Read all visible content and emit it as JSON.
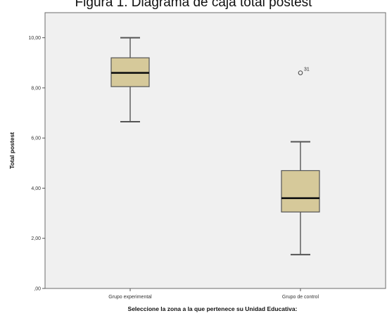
{
  "chart_data": {
    "type": "boxplot",
    "title": "Figura 1. Diagrama de caja total postest",
    "xlabel": "Seleccione la zona a la que pertenece su Unidad Educativa:",
    "ylabel": "Total postest",
    "ylim": [
      0,
      11
    ],
    "y_ticks": [
      {
        "value": 0,
        "label": ",00"
      },
      {
        "value": 2,
        "label": "2,00"
      },
      {
        "value": 4,
        "label": "4,00"
      },
      {
        "value": 6,
        "label": "6,00"
      },
      {
        "value": 8,
        "label": "8,00"
      },
      {
        "value": 10,
        "label": "10,00"
      }
    ],
    "categories": [
      "Grupo experimental",
      "Grupo de control"
    ],
    "boxes": [
      {
        "category": "Grupo experimental",
        "min": 6.65,
        "q1": 8.05,
        "median": 8.6,
        "q3": 9.2,
        "max": 10.0,
        "outliers": []
      },
      {
        "category": "Grupo de control",
        "min": 1.35,
        "q1": 3.05,
        "median": 3.6,
        "q3": 4.7,
        "max": 5.85,
        "outliers": [
          {
            "value": 8.6,
            "label": "31"
          }
        ]
      }
    ],
    "grid": false,
    "colors": {
      "box_fill": "#d6c99a",
      "plot_bg": "#f0f0f0",
      "line": "#555555",
      "median": "#111111"
    }
  }
}
